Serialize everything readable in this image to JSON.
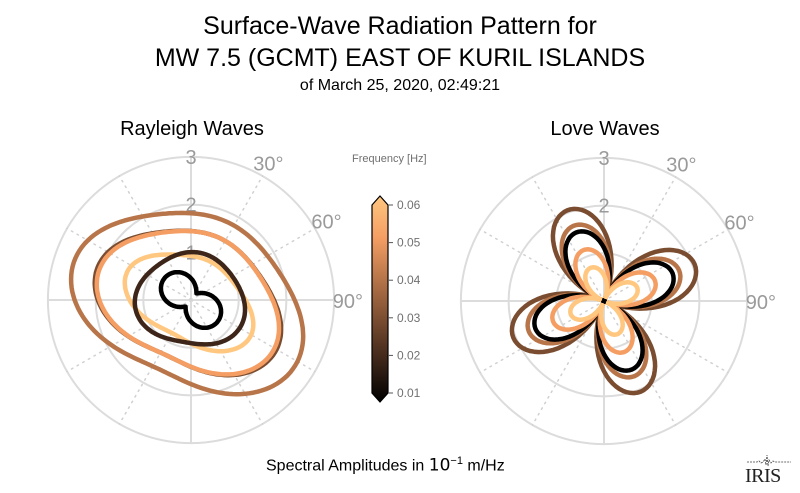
{
  "header": {
    "title_line1": "Surface-Wave Radiation Pattern for",
    "title_line2": "MW 7.5 (GCMT) EAST OF KURIL ISLANDS",
    "subtitle": "of March 25, 2020, 02:49:21"
  },
  "footer": {
    "label_prefix": "Spectral Amplitudes in ",
    "label_base": "10",
    "label_exponent": "−1",
    "label_unit": " m/Hz",
    "logo_text": "IRIS"
  },
  "colorbar": {
    "label": "Frequency [Hz]",
    "colormap": "copper",
    "min": 0.01,
    "max": 0.06,
    "ticks": [
      "0.06",
      "0.05",
      "0.04",
      "0.03",
      "0.02",
      "0.01"
    ],
    "extend": "both"
  },
  "chart_data": [
    {
      "type": "line",
      "projection": "polar",
      "title": "Rayleigh Waves",
      "theta_direction": "clockwise",
      "theta_zero": "north",
      "r_ticks": [
        "1",
        "2",
        "3"
      ],
      "r_lim": [
        0,
        3
      ],
      "theta_tick_labels": [
        "30°",
        "60°",
        "90°"
      ],
      "grid": true,
      "series": [
        {
          "name": "0.01 Hz",
          "freq": 0.01,
          "color": "#000000",
          "pattern": "peanut",
          "r_min": 0.3,
          "r_max": 0.6,
          "major_axis_deg": 130
        },
        {
          "name": "0.02 Hz",
          "freq": 0.02,
          "color": "#3d2619",
          "pattern": "ellipse",
          "r_min": 0.95,
          "r_max": 1.15,
          "major_axis_deg": 100
        },
        {
          "name": "0.03 Hz",
          "freq": 0.03,
          "color": "#7a4d31",
          "pattern": "ellipse",
          "r_min": 1.35,
          "r_max": 2.05,
          "major_axis_deg": 115
        },
        {
          "name": "0.04 Hz",
          "freq": 0.04,
          "color": "#b87549",
          "pattern": "ellipse",
          "r_min": 1.7,
          "r_max": 2.55,
          "major_axis_deg": 115
        },
        {
          "name": "0.05 Hz",
          "freq": 0.05,
          "color": "#f59e64",
          "pattern": "ellipse",
          "r_min": 1.35,
          "r_max": 2.0,
          "major_axis_deg": 115
        },
        {
          "name": "0.06 Hz",
          "freq": 0.06,
          "color": "#ffc77f",
          "pattern": "ellipse",
          "r_min": 0.85,
          "r_max": 1.45,
          "major_axis_deg": 118
        }
      ]
    },
    {
      "type": "line",
      "projection": "polar",
      "title": "Love Waves",
      "theta_direction": "clockwise",
      "theta_zero": "north",
      "r_ticks": [
        "2",
        "3"
      ],
      "r_lim": [
        0,
        3
      ],
      "theta_tick_labels": [
        "30°",
        "60°",
        "90°"
      ],
      "grid": true,
      "series": [
        {
          "name": "0.01 Hz",
          "freq": 0.01,
          "color": "#000000",
          "pattern": "four-lobe",
          "r_max": 0.05,
          "lobe_deg": 338
        },
        {
          "name": "0.02 Hz",
          "freq": 0.02,
          "color": "#000000",
          "pattern": "four-lobe",
          "r_max": 1.55,
          "lobe_deg": 338
        },
        {
          "name": "0.03 Hz",
          "freq": 0.03,
          "color": "#7a4d31",
          "pattern": "four-lobe",
          "r_max": 2.05,
          "lobe_deg": 338
        },
        {
          "name": "0.04 Hz",
          "freq": 0.04,
          "color": "#b87549",
          "pattern": "four-lobe",
          "r_max": 1.7,
          "lobe_deg": 338
        },
        {
          "name": "0.05 Hz",
          "freq": 0.05,
          "color": "#f59e64",
          "pattern": "four-lobe",
          "r_max": 1.15,
          "lobe_deg": 338
        },
        {
          "name": "0.06 Hz",
          "freq": 0.06,
          "color": "#ffc77f",
          "pattern": "four-lobe",
          "r_max": 0.75,
          "lobe_deg": 338
        }
      ]
    }
  ]
}
